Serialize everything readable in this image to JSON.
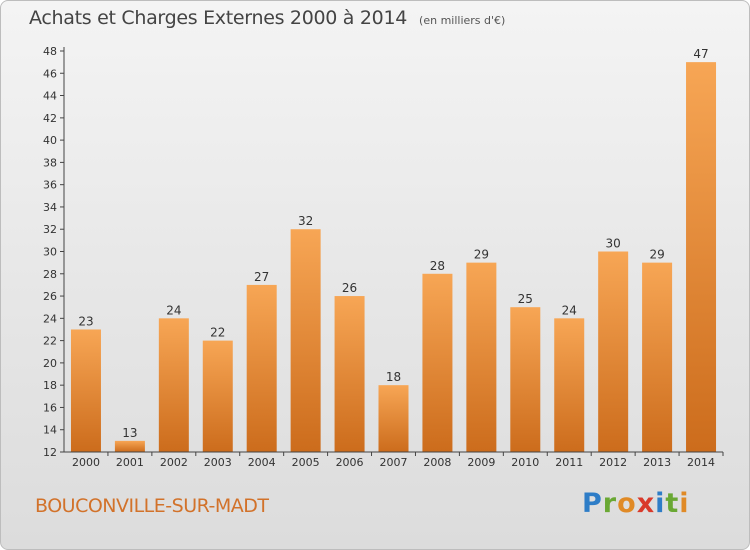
{
  "chart_data": {
    "type": "bar",
    "title": "Achats et Charges Externes 2000 à 2014",
    "subtitle": "(en milliers d'€)",
    "categories": [
      "2000",
      "2001",
      "2002",
      "2003",
      "2004",
      "2005",
      "2006",
      "2007",
      "2008",
      "2009",
      "2010",
      "2011",
      "2012",
      "2013",
      "2014"
    ],
    "values": [
      23,
      13,
      24,
      22,
      27,
      32,
      26,
      18,
      28,
      29,
      25,
      24,
      30,
      29,
      47
    ],
    "ylim": [
      12,
      48
    ],
    "yticks": [
      12,
      14,
      16,
      18,
      20,
      22,
      24,
      26,
      28,
      30,
      32,
      34,
      36,
      38,
      40,
      42,
      44,
      46,
      48
    ],
    "grid": false,
    "colors": {
      "bar_light": "#f7a655",
      "bar_dark": "#cc6c1c",
      "axis": "#444444"
    }
  },
  "footer": {
    "town": "BOUCONVILLE-SUR-MADT",
    "brand_letters": [
      "P",
      "r",
      "o",
      "x",
      "i",
      "t",
      "i"
    ]
  }
}
